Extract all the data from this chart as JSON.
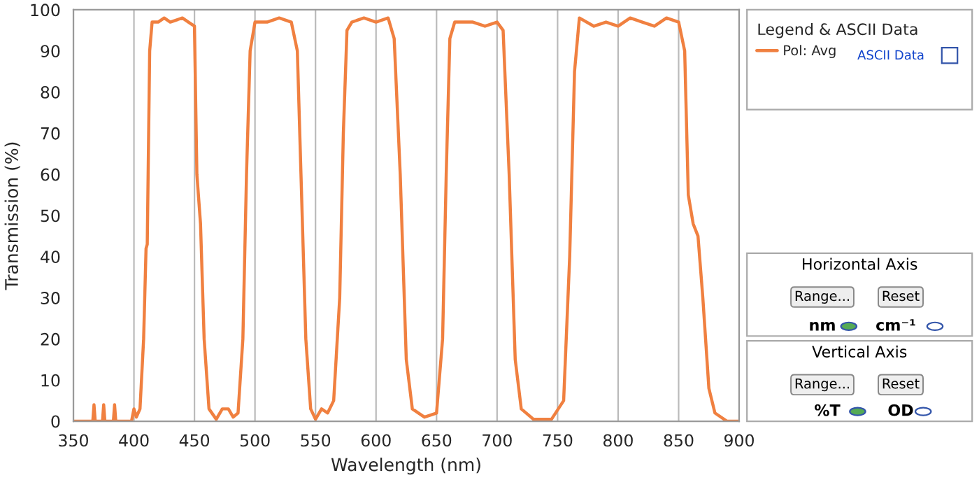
{
  "chart_data": {
    "type": "line",
    "xlabel": "Wavelength (nm)",
    "ylabel": "Transmission (%)",
    "legend_title": "Legend & ASCII Data",
    "legend": "top right",
    "grid": "x",
    "xlim": [
      350,
      900
    ],
    "xticks": [
      350,
      400,
      450,
      500,
      550,
      600,
      650,
      700,
      750,
      800,
      850,
      900
    ],
    "ylim": [
      0,
      100
    ],
    "yticks": [
      0,
      10,
      20,
      30,
      40,
      50,
      60,
      70,
      80,
      90,
      100
    ],
    "annotations": [
      "ASCII Data",
      "Horizontal Axis",
      "Range...",
      "Reset",
      "nm",
      "cm⁻¹",
      "Vertical Axis",
      "Range...",
      "Reset",
      "%T",
      "OD"
    ],
    "series": [
      {
        "name": "Pol: Avg",
        "color": "#f08040",
        "x": [
          350,
          366,
          367,
          368,
          374,
          375,
          376,
          383,
          384,
          385,
          398,
          400,
          402,
          405,
          408,
          410,
          411,
          413,
          415,
          420,
          425,
          430,
          440,
          445,
          450,
          452,
          455,
          458,
          462,
          468,
          473,
          478,
          482,
          486,
          490,
          493,
          496,
          500,
          510,
          520,
          530,
          535,
          538,
          542,
          546,
          550,
          555,
          560,
          565,
          570,
          573,
          576,
          580,
          590,
          600,
          610,
          615,
          620,
          625,
          630,
          640,
          650,
          655,
          658,
          661,
          665,
          680,
          690,
          700,
          705,
          710,
          715,
          720,
          730,
          745,
          755,
          760,
          764,
          768,
          780,
          790,
          800,
          810,
          820,
          830,
          840,
          850,
          855,
          858,
          862,
          866,
          870,
          875,
          880,
          890,
          900
        ],
        "values": [
          0,
          0,
          4,
          0,
          0,
          4,
          0,
          0,
          4,
          0,
          0,
          3,
          1,
          3,
          20,
          42,
          43,
          90,
          97,
          97,
          98,
          97,
          98,
          97,
          96,
          60,
          48,
          20,
          3,
          0.5,
          3,
          3,
          1,
          2,
          20,
          60,
          90,
          97,
          97,
          98,
          97,
          90,
          60,
          20,
          3,
          0.5,
          3,
          2,
          5,
          30,
          70,
          95,
          97,
          98,
          97,
          98,
          93,
          60,
          15,
          3,
          1,
          2,
          20,
          60,
          93,
          97,
          97,
          96,
          97,
          95,
          60,
          15,
          3,
          0.5,
          0.5,
          5,
          40,
          85,
          98,
          96,
          97,
          96,
          98,
          97,
          96,
          98,
          97,
          90,
          55,
          48,
          45,
          30,
          8,
          2,
          0,
          0
        ]
      }
    ]
  }
}
